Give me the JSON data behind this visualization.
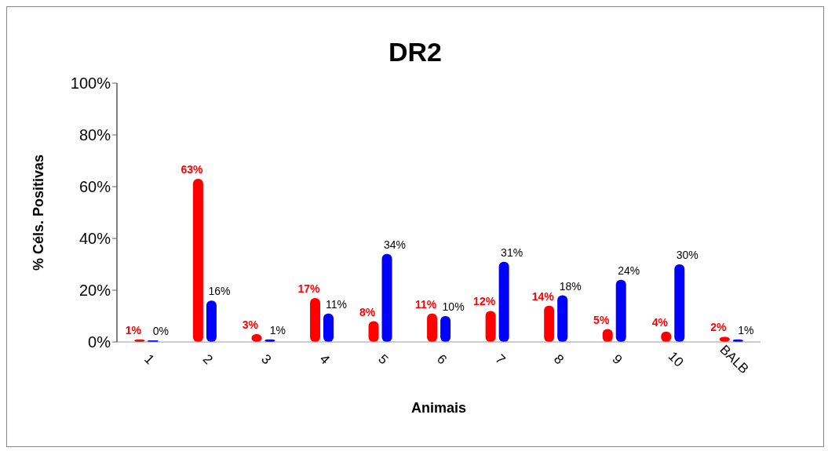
{
  "chart_data": {
    "type": "bar",
    "title": "DR2",
    "xlabel": "Animais",
    "ylabel": "% Céls. Positivas",
    "categories": [
      "1",
      "2",
      "3",
      "4",
      "5",
      "6",
      "7",
      "8",
      "9",
      "10",
      "BALB"
    ],
    "series": [
      {
        "color": "#ff0000",
        "values": [
          1,
          63,
          3,
          17,
          8,
          11,
          12,
          14,
          5,
          4,
          2
        ],
        "value_labels": [
          "1%",
          "63%",
          "3%",
          "17%",
          "8%",
          "11%",
          "12%",
          "14%",
          "5%",
          "4%",
          "2%"
        ]
      },
      {
        "color": "#0000ff",
        "values": [
          0,
          16,
          1,
          11,
          34,
          10,
          31,
          18,
          24,
          30,
          1
        ],
        "value_labels": [
          "0%",
          "16%",
          "1%",
          "11%",
          "34%",
          "10%",
          "31%",
          "18%",
          "24%",
          "30%",
          "1%"
        ]
      }
    ],
    "ylim": [
      0,
      100
    ],
    "yticks": [
      {
        "value": 0,
        "label": "0%"
      },
      {
        "value": 20,
        "label": "20%"
      },
      {
        "value": 40,
        "label": "40%"
      },
      {
        "value": 60,
        "label": "60%"
      },
      {
        "value": 80,
        "label": "80%"
      },
      {
        "value": 100,
        "label": "100%"
      }
    ],
    "grid": false,
    "legend": false
  }
}
